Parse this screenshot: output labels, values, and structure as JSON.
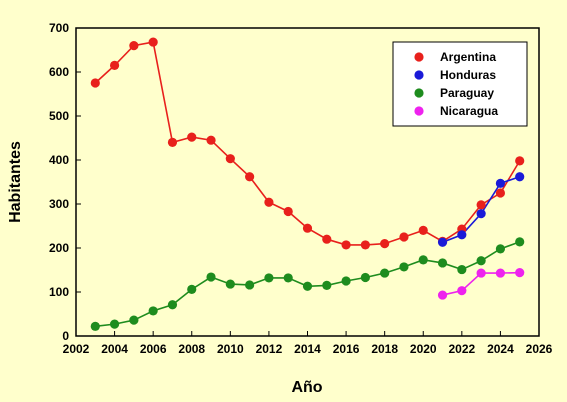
{
  "chart_data": {
    "type": "line",
    "title": "",
    "xlabel": "Año",
    "ylabel": "Habitantes",
    "xlim": [
      2002,
      2026
    ],
    "ylim": [
      0,
      700
    ],
    "xticks": [
      2002,
      2004,
      2006,
      2008,
      2010,
      2012,
      2014,
      2016,
      2018,
      2020,
      2022,
      2024,
      2026
    ],
    "yticks": [
      0,
      100,
      200,
      300,
      400,
      500,
      600,
      700
    ],
    "grid": false,
    "legend_position": "top-right",
    "series": [
      {
        "name": "Argentina",
        "color": "#e8201c",
        "x": [
          2003,
          2004,
          2005,
          2006,
          2007,
          2008,
          2009,
          2010,
          2011,
          2012,
          2013,
          2014,
          2015,
          2016,
          2017,
          2018,
          2019,
          2020,
          2021,
          2022,
          2023,
          2024,
          2025
        ],
        "y": [
          575,
          615,
          660,
          668,
          440,
          452,
          445,
          403,
          362,
          304,
          283,
          245,
          220,
          207,
          207,
          210,
          225,
          240,
          215,
          243,
          298,
          325,
          398
        ]
      },
      {
        "name": "Honduras",
        "color": "#1a1ad8",
        "x": [
          2021,
          2022,
          2023,
          2024,
          2025
        ],
        "y": [
          213,
          230,
          278,
          347,
          362
        ]
      },
      {
        "name": "Paraguay",
        "color": "#1e8c1e",
        "x": [
          2003,
          2004,
          2005,
          2006,
          2007,
          2008,
          2009,
          2010,
          2011,
          2012,
          2013,
          2014,
          2015,
          2016,
          2017,
          2018,
          2019,
          2020,
          2021,
          2022,
          2023,
          2024,
          2025
        ],
        "y": [
          22,
          27,
          36,
          57,
          71,
          106,
          134,
          118,
          116,
          132,
          132,
          113,
          115,
          125,
          133,
          143,
          157,
          173,
          166,
          151,
          171,
          198,
          214
        ]
      },
      {
        "name": "Nicaragua",
        "color": "#ee22ee",
        "x": [
          2021,
          2022,
          2023,
          2024,
          2025
        ],
        "y": [
          93,
          103,
          143,
          143,
          144
        ]
      }
    ]
  }
}
